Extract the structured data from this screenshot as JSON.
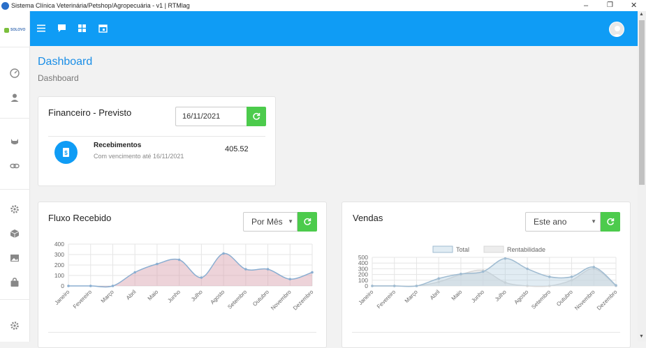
{
  "window": {
    "title": "Sistema Clínica Veterinária/Petshop/Agropecuária - v1 | RTMlag"
  },
  "sidebar": {
    "logo_text": "SOLOVO",
    "items": [
      "dashboard-icon",
      "user-icon",
      "pet-icon",
      "link-icon",
      "settings-icon",
      "box-icon",
      "image-icon",
      "bag-icon",
      "settings-icon"
    ]
  },
  "topbar": {
    "icons": [
      "menu-icon",
      "chat-icon",
      "grid-icon",
      "calendar-icon"
    ]
  },
  "page": {
    "title": "Dashboard",
    "breadcrumb": "Dashboard"
  },
  "financeiro": {
    "title": "Financeiro - Previsto",
    "date": "16/11/2021",
    "recebimentos_label": "Recebimentos",
    "vencimento_text": "Com vencimento até 16/11/2021",
    "value": "405.52"
  },
  "fluxo": {
    "title": "Fluxo Recebido",
    "period": "Por Mês"
  },
  "vendas": {
    "title": "Vendas",
    "period": "Este ano"
  },
  "colors": {
    "primary": "#0f9cf5",
    "success": "#4ccb4c"
  },
  "chart_data": [
    {
      "type": "area",
      "title": "",
      "categories": [
        "Janeiro",
        "Fevereiro",
        "Março",
        "Abril",
        "Maio",
        "Junho",
        "Julho",
        "Agosto",
        "Setembro",
        "Outubro",
        "Novembro",
        "Dezembro"
      ],
      "values": [
        0,
        0,
        0,
        130,
        210,
        250,
        80,
        310,
        160,
        160,
        65,
        130
      ],
      "ylim": [
        0,
        400
      ],
      "yticks": [
        0,
        100,
        200,
        300,
        400
      ],
      "grid": true
    },
    {
      "type": "area",
      "title": "",
      "categories": [
        "Janeiro",
        "Fevereiro",
        "Março",
        "Abril",
        "Maio",
        "Junho",
        "Julho",
        "Agosto",
        "Setembro",
        "Outubro",
        "Novembro",
        "Dezembro"
      ],
      "series": [
        {
          "name": "Total",
          "values": [
            0,
            0,
            0,
            130,
            210,
            250,
            480,
            300,
            160,
            160,
            330,
            10
          ]
        },
        {
          "name": "Rentabilidade",
          "values": [
            0,
            0,
            0,
            70,
            200,
            270,
            60,
            0,
            0,
            100,
            300,
            0
          ]
        }
      ],
      "ylim": [
        0,
        500
      ],
      "yticks": [
        0,
        100,
        200,
        300,
        400,
        500
      ],
      "legend": "top",
      "grid": true
    }
  ]
}
